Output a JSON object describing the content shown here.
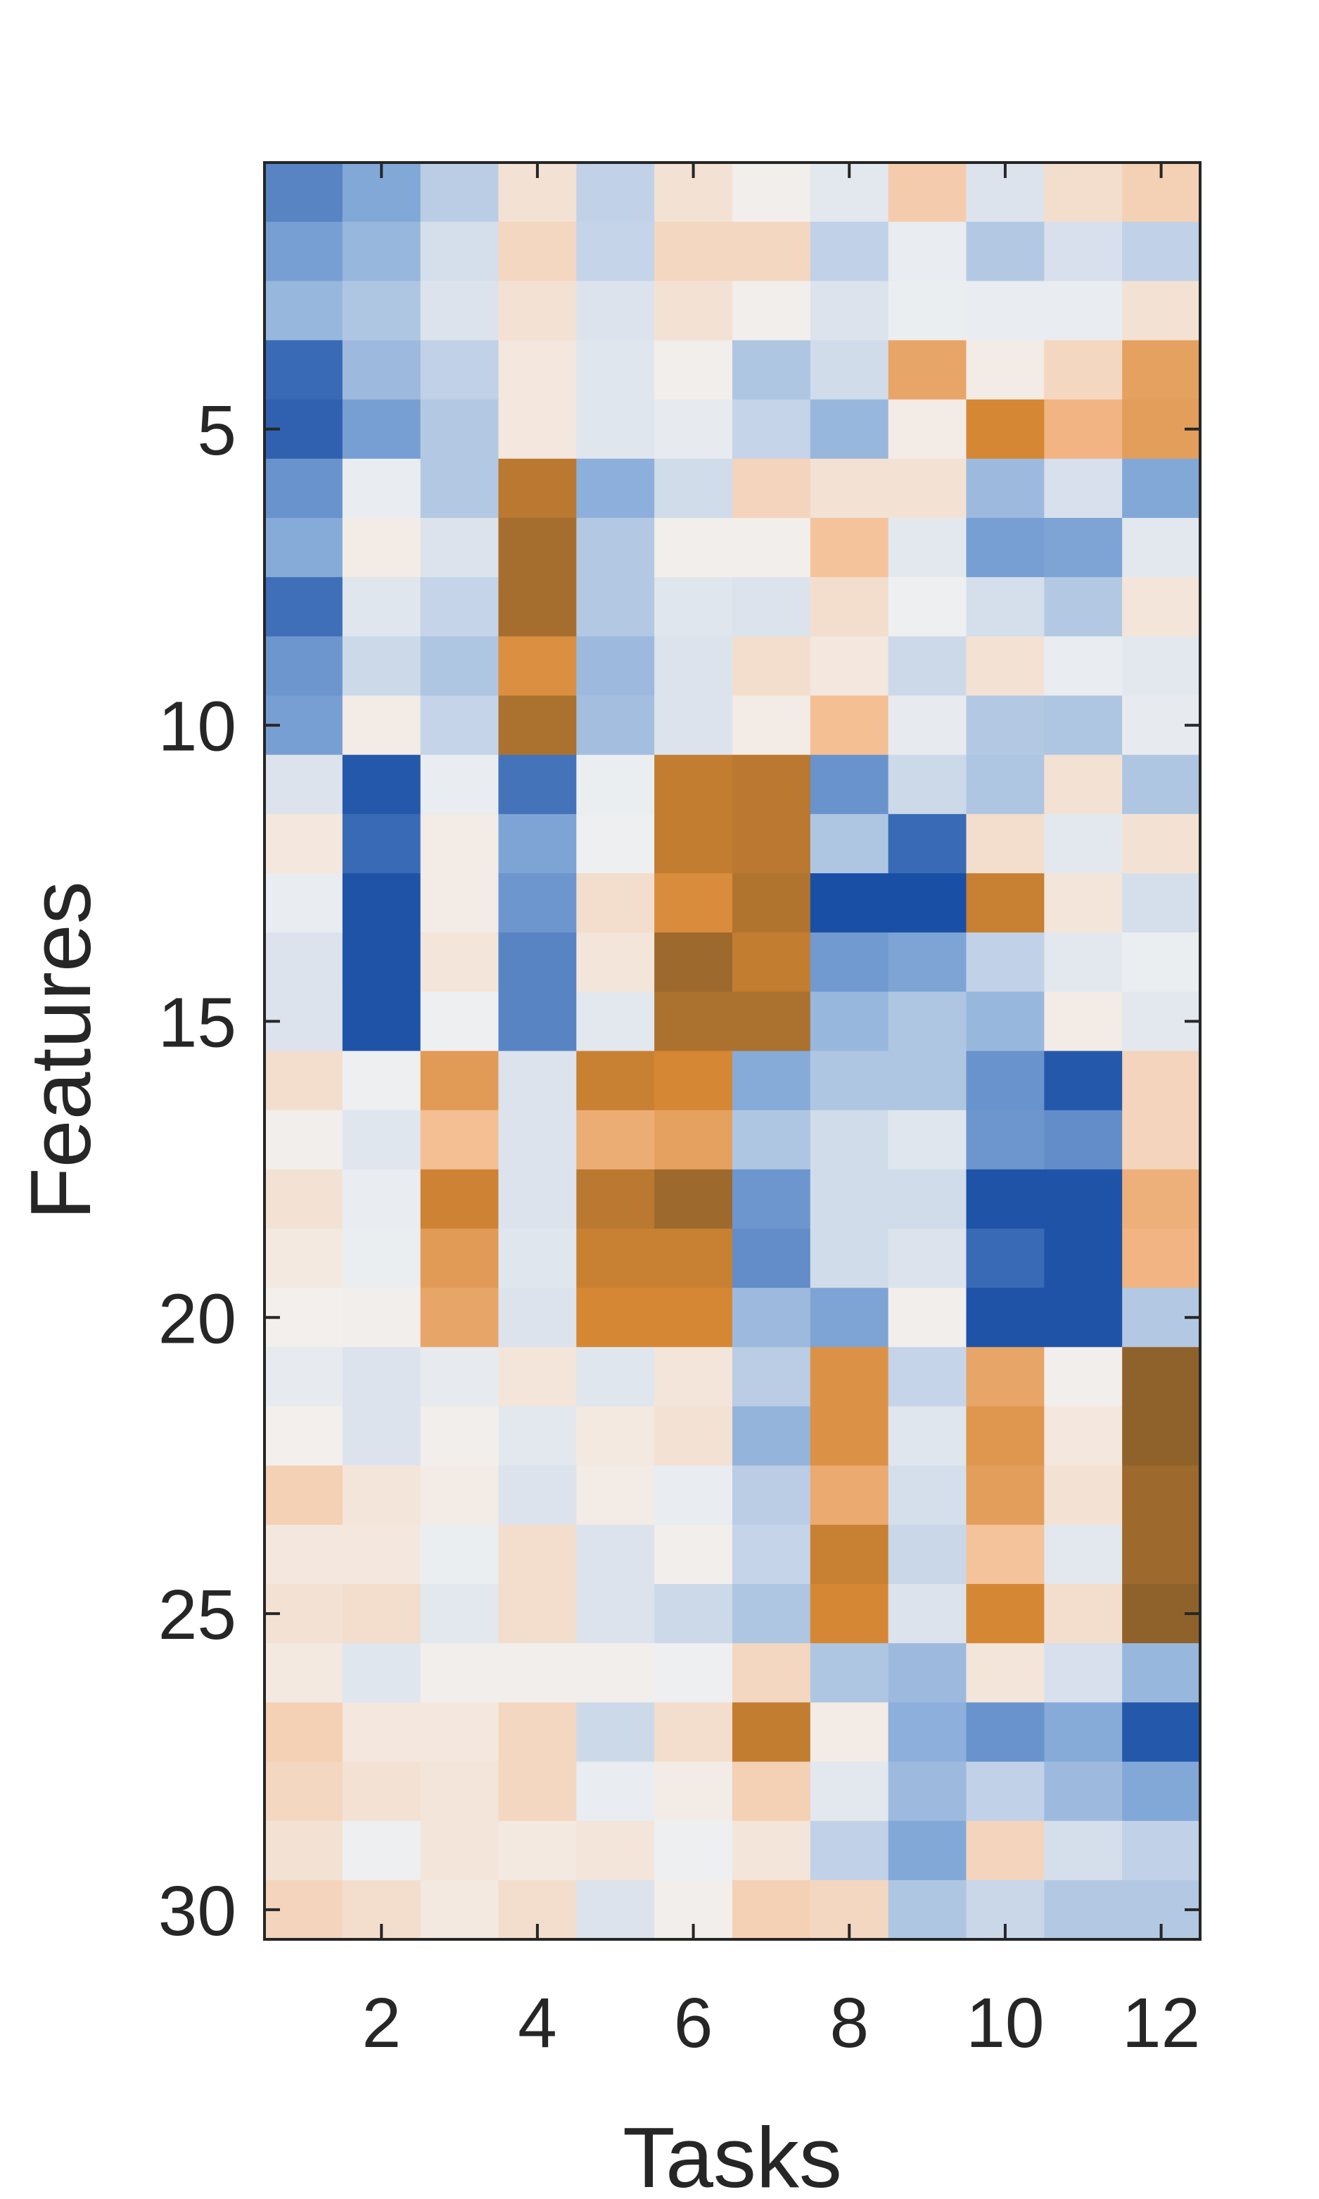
{
  "chart_data": {
    "type": "heatmap",
    "title": "",
    "xlabel": "Tasks",
    "ylabel": "Features",
    "x_ticks": [
      2,
      4,
      6,
      8,
      10,
      12
    ],
    "y_ticks": [
      5,
      10,
      15,
      20,
      25,
      30
    ],
    "n_tasks": 12,
    "n_features": 30,
    "colorbar": false,
    "colorscale": {
      "range": [
        -1,
        1
      ],
      "stops": [
        {
          "value": -1.0,
          "color": "#1a4fa6"
        },
        {
          "value": -0.5,
          "color": "#82a8d8"
        },
        {
          "value": 0.0,
          "color": "#f2f2f2"
        },
        {
          "value": 0.4,
          "color": "#f5bc8f"
        },
        {
          "value": 0.75,
          "color": "#d68734"
        },
        {
          "value": 1.0,
          "color": "#8f622b"
        }
      ]
    },
    "values": [
      [
        -0.7,
        -0.5,
        -0.25,
        0.12,
        -0.22,
        0.12,
        0.03,
        -0.07,
        0.28,
        -0.1,
        0.15,
        0.25
      ],
      [
        -0.55,
        -0.4,
        -0.13,
        0.2,
        -0.2,
        0.2,
        0.2,
        -0.22,
        -0.04,
        -0.28,
        -0.12,
        -0.22
      ],
      [
        -0.4,
        -0.3,
        -0.1,
        0.12,
        -0.1,
        0.12,
        0.03,
        -0.1,
        -0.03,
        -0.04,
        -0.04,
        0.12
      ],
      [
        -0.85,
        -0.38,
        -0.22,
        0.08,
        -0.08,
        0.03,
        -0.3,
        -0.15,
        0.55,
        0.05,
        0.2,
        0.58
      ],
      [
        -0.9,
        -0.55,
        -0.28,
        0.08,
        -0.08,
        -0.05,
        -0.2,
        -0.4,
        0.05,
        0.75,
        0.45,
        0.6
      ],
      [
        -0.62,
        -0.04,
        -0.28,
        0.85,
        -0.45,
        -0.15,
        0.22,
        0.12,
        0.12,
        -0.38,
        -0.12,
        -0.5
      ],
      [
        -0.48,
        0.05,
        -0.1,
        0.92,
        -0.28,
        0.03,
        0.03,
        0.35,
        -0.07,
        -0.55,
        -0.52,
        -0.07
      ],
      [
        -0.82,
        -0.08,
        -0.2,
        0.92,
        -0.28,
        -0.08,
        -0.1,
        0.15,
        -0.02,
        -0.13,
        -0.28,
        0.1
      ],
      [
        -0.6,
        -0.17,
        -0.3,
        0.7,
        -0.38,
        -0.1,
        0.15,
        0.08,
        -0.17,
        0.12,
        -0.04,
        -0.07
      ],
      [
        -0.55,
        0.05,
        -0.2,
        0.9,
        -0.35,
        -0.1,
        0.05,
        0.38,
        -0.05,
        -0.28,
        -0.3,
        -0.05
      ],
      [
        -0.1,
        -0.95,
        -0.04,
        -0.8,
        -0.03,
        0.82,
        0.85,
        -0.62,
        -0.17,
        -0.3,
        0.12,
        -0.3
      ],
      [
        0.08,
        -0.85,
        0.05,
        -0.52,
        -0.02,
        0.82,
        0.85,
        -0.3,
        -0.85,
        0.15,
        -0.07,
        0.12
      ],
      [
        -0.04,
        -0.98,
        0.05,
        -0.6,
        0.15,
        0.72,
        0.88,
        -1.0,
        -1.0,
        0.8,
        0.1,
        -0.13
      ],
      [
        -0.1,
        -0.98,
        0.1,
        -0.7,
        0.1,
        0.95,
        0.82,
        -0.58,
        -0.52,
        -0.22,
        -0.07,
        -0.03
      ],
      [
        -0.1,
        -0.98,
        -0.02,
        -0.7,
        -0.07,
        0.9,
        0.9,
        -0.4,
        -0.3,
        -0.4,
        0.05,
        -0.07
      ],
      [
        0.15,
        -0.02,
        0.62,
        -0.1,
        0.8,
        0.75,
        -0.48,
        -0.3,
        -0.3,
        -0.62,
        -0.95,
        0.22
      ],
      [
        0.03,
        -0.08,
        0.38,
        -0.1,
        0.5,
        0.58,
        -0.3,
        -0.15,
        -0.08,
        -0.6,
        -0.65,
        0.22
      ],
      [
        0.12,
        -0.04,
        0.78,
        -0.1,
        0.85,
        0.95,
        -0.6,
        -0.15,
        -0.15,
        -0.98,
        -0.98,
        0.48
      ],
      [
        0.07,
        -0.03,
        0.62,
        -0.08,
        0.8,
        0.8,
        -0.65,
        -0.15,
        -0.1,
        -0.85,
        -0.98,
        0.45
      ],
      [
        0.02,
        0.03,
        0.55,
        -0.1,
        0.75,
        0.75,
        -0.38,
        -0.52,
        0.03,
        -0.98,
        -0.98,
        -0.28
      ],
      [
        -0.05,
        -0.1,
        -0.05,
        0.1,
        -0.08,
        0.1,
        -0.25,
        0.68,
        -0.2,
        0.55,
        0.03,
        1.0
      ],
      [
        0.02,
        -0.1,
        0.03,
        -0.07,
        0.07,
        0.12,
        -0.42,
        0.68,
        -0.08,
        0.65,
        0.08,
        1.0
      ],
      [
        0.25,
        0.1,
        0.05,
        -0.1,
        0.05,
        -0.04,
        -0.25,
        0.52,
        -0.13,
        0.6,
        0.12,
        0.95
      ],
      [
        0.08,
        0.08,
        -0.03,
        0.15,
        -0.1,
        0.03,
        -0.2,
        0.8,
        -0.18,
        0.35,
        -0.07,
        0.95
      ],
      [
        0.12,
        0.15,
        -0.07,
        0.15,
        -0.1,
        -0.17,
        -0.3,
        0.75,
        -0.1,
        0.75,
        0.15,
        1.0
      ],
      [
        0.07,
        -0.08,
        0.03,
        0.03,
        0.03,
        -0.02,
        0.2,
        -0.3,
        -0.38,
        0.1,
        -0.12,
        -0.4
      ],
      [
        0.25,
        0.08,
        0.08,
        0.2,
        -0.17,
        0.15,
        0.82,
        0.05,
        -0.45,
        -0.62,
        -0.48,
        -0.95
      ],
      [
        0.2,
        0.12,
        0.1,
        0.2,
        -0.04,
        0.05,
        0.25,
        -0.07,
        -0.38,
        -0.22,
        -0.38,
        -0.5
      ],
      [
        0.12,
        -0.02,
        0.1,
        0.07,
        0.1,
        -0.02,
        0.1,
        -0.22,
        -0.5,
        0.22,
        -0.13,
        -0.22
      ],
      [
        0.22,
        0.15,
        0.07,
        0.15,
        -0.1,
        0.03,
        0.25,
        0.2,
        -0.3,
        -0.18,
        -0.28,
        -0.28
      ]
    ]
  }
}
